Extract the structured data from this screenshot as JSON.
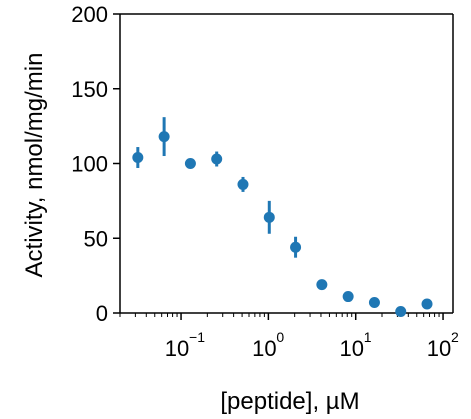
{
  "chart_data": {
    "type": "scatter",
    "title": "",
    "xlabel": "[peptide], µM",
    "ylabel": "Activity, nmol/mg/min",
    "xscale": "log",
    "xlim": [
      0.02,
      130
    ],
    "ylim": [
      0,
      200
    ],
    "grid": false,
    "color": "#1f77b4",
    "xticks": [
      {
        "value": 0.1,
        "base": "10",
        "exp": "−1"
      },
      {
        "value": 1,
        "base": "10",
        "exp": "0"
      },
      {
        "value": 10,
        "base": "10",
        "exp": "1"
      },
      {
        "value": 100,
        "base": "10",
        "exp": "2"
      }
    ],
    "yticks": [
      0,
      50,
      100,
      150,
      200
    ],
    "points": [
      {
        "x": 0.032,
        "y": 104,
        "err": 7
      },
      {
        "x": 0.064,
        "y": 118,
        "err": 13
      },
      {
        "x": 0.128,
        "y": 100,
        "err": 0
      },
      {
        "x": 0.256,
        "y": 103,
        "err": 5
      },
      {
        "x": 0.512,
        "y": 86,
        "err": 5
      },
      {
        "x": 1.024,
        "y": 64,
        "err": 11
      },
      {
        "x": 2.048,
        "y": 44,
        "err": 7
      },
      {
        "x": 4.096,
        "y": 19,
        "err": 0
      },
      {
        "x": 8.192,
        "y": 11,
        "err": 0
      },
      {
        "x": 16.384,
        "y": 7,
        "err": 0
      },
      {
        "x": 32.768,
        "y": 1,
        "err": 0
      },
      {
        "x": 65.536,
        "y": 6,
        "err": 0
      }
    ]
  }
}
